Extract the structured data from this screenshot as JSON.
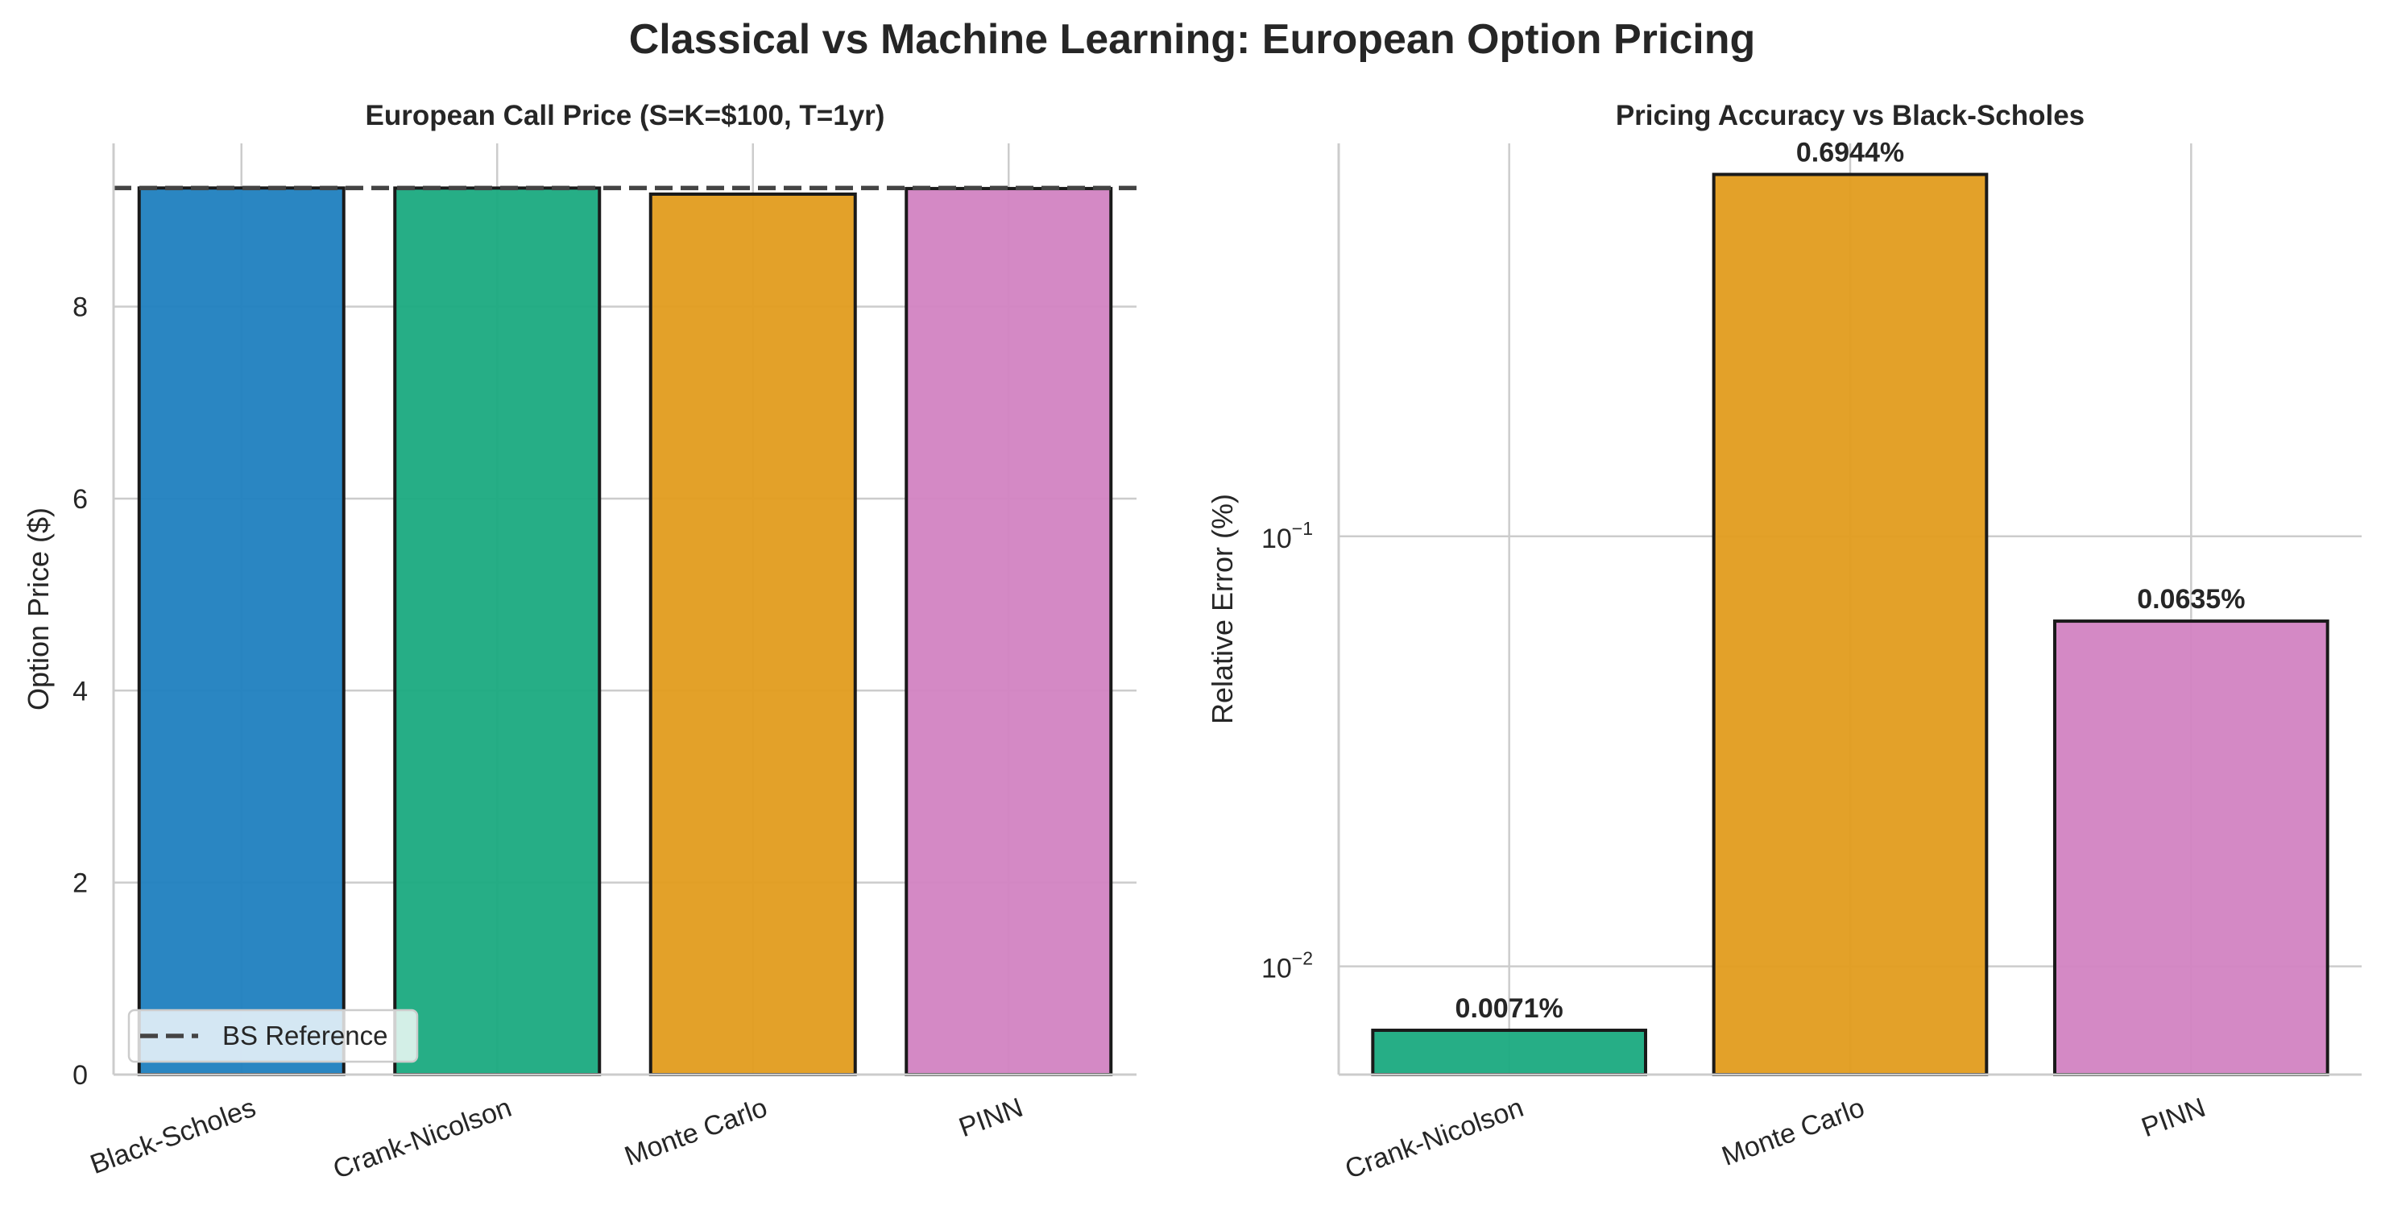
{
  "figure": {
    "suptitle": "Classical vs Machine Learning: European Option Pricing"
  },
  "colors": {
    "blue": "#1f7fbf",
    "green": "#1aaa80",
    "orange": "#e19c1d",
    "pink": "#d283c2",
    "edge": "#1a1a1a",
    "grid": "#cccccc",
    "reference": "#444444"
  },
  "chart_data": [
    {
      "type": "bar",
      "title": "European Call Price (S=K=$100, T=1yr)",
      "xlabel": "",
      "ylabel": "Option Price ($)",
      "categories": [
        "Black-Scholes",
        "Crank-Nicolson",
        "Monte Carlo",
        "PINN"
      ],
      "values": [
        9.2354,
        9.2347,
        9.1713,
        9.2295
      ],
      "bar_colors": [
        "#1f7fbf",
        "#1aaa80",
        "#e19c1d",
        "#d283c2"
      ],
      "ylim": [
        0,
        9.7
      ],
      "yticks": [
        0,
        2,
        4,
        6,
        8
      ],
      "ytick_labels": [
        "0",
        "2",
        "4",
        "6",
        "8"
      ],
      "reference_line": {
        "value": 9.2354,
        "label": "BS Reference",
        "style": "dashed"
      },
      "legend": {
        "placement": "lower-left",
        "entries": [
          "BS Reference"
        ]
      },
      "grid": true
    },
    {
      "type": "bar",
      "title": "Pricing Accuracy vs Black-Scholes",
      "xlabel": "",
      "ylabel": "Relative Error (%)",
      "yscale": "log",
      "categories": [
        "Crank-Nicolson",
        "Monte Carlo",
        "PINN"
      ],
      "values": [
        0.0071,
        0.6944,
        0.0635
      ],
      "data_labels": [
        "0.0071%",
        "0.6944%",
        "0.0635%"
      ],
      "bar_colors": [
        "#1aaa80",
        "#e19c1d",
        "#d283c2"
      ],
      "ylim": [
        0.0056,
        0.82
      ],
      "yticks": [
        0.01,
        0.1
      ],
      "ytick_labels": [
        {
          "base": "10",
          "exp": "−2"
        },
        {
          "base": "10",
          "exp": "−1"
        }
      ],
      "grid": true
    }
  ]
}
